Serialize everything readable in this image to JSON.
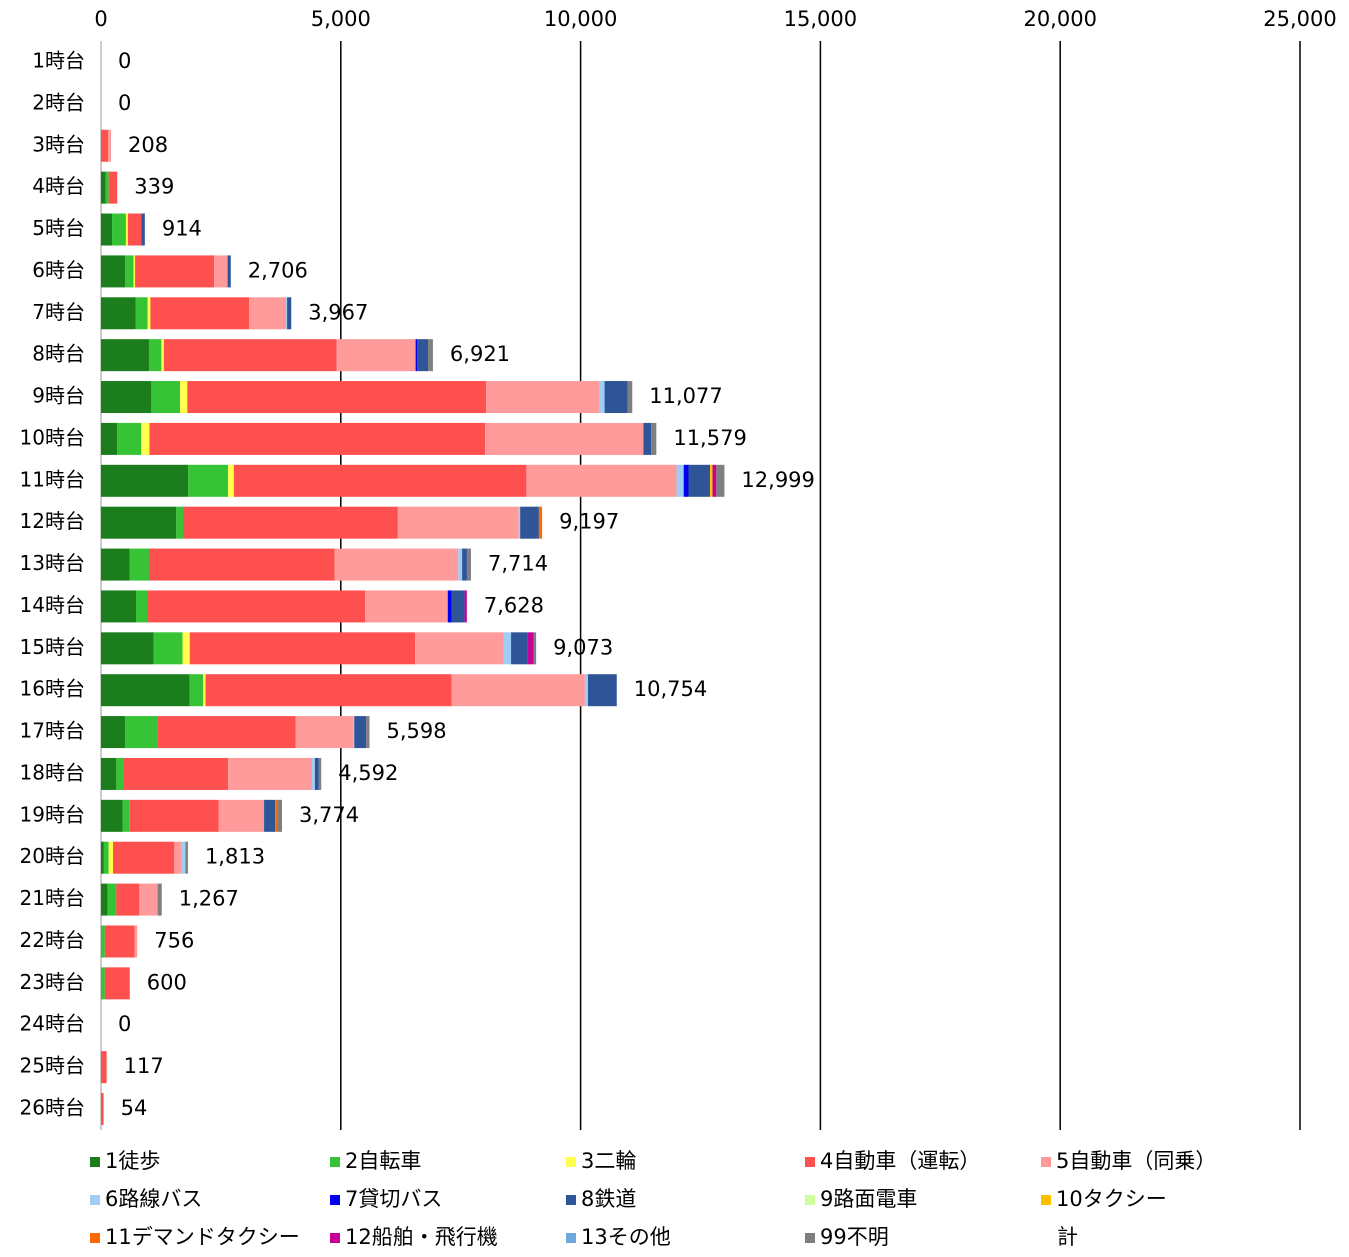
{
  "chart_data": {
    "type": "bar",
    "orientation": "horizontal",
    "stacked": true,
    "grid": true,
    "categories": [
      "1時台",
      "2時台",
      "3時台",
      "4時台",
      "5時台",
      "6時台",
      "7時台",
      "8時台",
      "9時台",
      "10時台",
      "11時台",
      "12時台",
      "13時台",
      "14時台",
      "15時台",
      "16時台",
      "17時台",
      "18時台",
      "19時台",
      "20時台",
      "21時台",
      "22時台",
      "23時台",
      "24時台",
      "25時台",
      "26時台"
    ],
    "xlim": [
      0,
      25000
    ],
    "xticks": [
      0,
      {
        "value": 5000,
        "label": "5,000"
      },
      {
        "value": 10000,
        "label": "10,000"
      },
      {
        "value": 15000,
        "label": "15,000"
      },
      {
        "value": 20000,
        "label": "20,000"
      },
      {
        "value": 25000,
        "label": "25,000"
      }
    ],
    "series": [
      {
        "name": "1徒歩",
        "color": "#1b7d1b",
        "values": [
          0,
          0,
          0,
          100,
          230,
          500,
          720,
          1000,
          1050,
          340,
          1820,
          1570,
          600,
          730,
          1100,
          1850,
          500,
          320,
          450,
          60,
          140,
          0,
          0,
          0,
          0,
          0
        ]
      },
      {
        "name": "2自転車",
        "color": "#36c436",
        "values": [
          0,
          0,
          0,
          60,
          290,
          180,
          250,
          260,
          600,
          500,
          830,
          150,
          400,
          230,
          600,
          280,
          680,
          150,
          150,
          100,
          180,
          80,
          80,
          0,
          0,
          0
        ]
      },
      {
        "name": "3二輪",
        "color": "#ffff4d",
        "values": [
          0,
          0,
          0,
          0,
          40,
          30,
          60,
          50,
          150,
          170,
          120,
          0,
          0,
          0,
          150,
          50,
          0,
          0,
          0,
          90,
          0,
          0,
          0,
          0,
          0,
          0
        ]
      },
      {
        "name": "4自動車（運転）",
        "color": "#ff5050",
        "values": [
          0,
          0,
          150,
          179,
          280,
          1650,
          2060,
          3600,
          6230,
          7000,
          6100,
          4470,
          3870,
          4550,
          4700,
          5130,
          2880,
          2180,
          1850,
          1280,
          480,
          620,
          520,
          0,
          117,
          54
        ]
      },
      {
        "name": "5自動車（同乗）",
        "color": "#ff9b9b",
        "values": [
          0,
          0,
          58,
          0,
          0,
          280,
          770,
          1650,
          2370,
          3300,
          3130,
          2520,
          2580,
          1720,
          1850,
          2780,
          1200,
          1750,
          950,
          150,
          380,
          56,
          0,
          0,
          0,
          0
        ]
      },
      {
        "name": "6路線バス",
        "color": "#9fcdf5",
        "values": [
          0,
          0,
          0,
          0,
          0,
          0,
          20,
          0,
          100,
          0,
          150,
          30,
          80,
          0,
          150,
          64,
          20,
          60,
          0,
          80,
          0,
          0,
          0,
          0,
          0,
          0
        ]
      },
      {
        "name": "7貸切バス",
        "color": "#0000f0",
        "values": [
          0,
          0,
          0,
          0,
          0,
          0,
          0,
          30,
          0,
          0,
          100,
          0,
          0,
          80,
          0,
          0,
          0,
          0,
          0,
          0,
          0,
          0,
          0,
          0,
          0,
          0
        ]
      },
      {
        "name": "8鉄道",
        "color": "#2f5597",
        "values": [
          0,
          0,
          0,
          0,
          74,
          66,
          87,
          230,
          480,
          160,
          450,
          390,
          100,
          270,
          340,
          600,
          250,
          82,
          230,
          0,
          0,
          0,
          0,
          0,
          0,
          0
        ]
      },
      {
        "name": "9路面電車",
        "color": "#ccff99",
        "values": [
          0,
          0,
          0,
          0,
          0,
          0,
          0,
          0,
          0,
          0,
          0,
          0,
          0,
          0,
          0,
          0,
          0,
          0,
          0,
          0,
          0,
          0,
          0,
          0,
          0,
          0
        ]
      },
      {
        "name": "10タクシー",
        "color": "#ffc000",
        "values": [
          0,
          0,
          0,
          0,
          0,
          0,
          0,
          0,
          0,
          0,
          50,
          0,
          0,
          0,
          0,
          0,
          0,
          0,
          0,
          0,
          0,
          0,
          0,
          0,
          0,
          0
        ]
      },
      {
        "name": "11デマンドタクシー",
        "color": "#ff6a00",
        "values": [
          0,
          0,
          0,
          0,
          0,
          0,
          0,
          0,
          0,
          0,
          0,
          67,
          0,
          0,
          0,
          0,
          0,
          0,
          50,
          0,
          0,
          0,
          0,
          0,
          0,
          0
        ]
      },
      {
        "name": "12船舶・飛行機",
        "color": "#c8009a",
        "values": [
          0,
          0,
          0,
          0,
          0,
          0,
          0,
          0,
          0,
          0,
          80,
          0,
          0,
          48,
          130,
          0,
          0,
          0,
          0,
          0,
          0,
          0,
          0,
          0,
          0,
          0
        ]
      },
      {
        "name": "13その他",
        "color": "#6fa8dc",
        "values": [
          0,
          0,
          0,
          0,
          0,
          0,
          0,
          0,
          0,
          0,
          0,
          0,
          0,
          0,
          0,
          0,
          0,
          0,
          0,
          0,
          0,
          0,
          0,
          0,
          0,
          0
        ]
      },
      {
        "name": "99不明",
        "color": "#7f7f7f",
        "values": [
          0,
          0,
          0,
          0,
          0,
          0,
          0,
          101,
          97,
          109,
          169,
          0,
          84,
          0,
          53,
          0,
          68,
          50,
          94,
          53,
          87,
          0,
          0,
          0,
          0,
          0
        ]
      },
      {
        "name": "計",
        "values": [
          0,
          0,
          208,
          339,
          914,
          2706,
          3967,
          6921,
          11077,
          11579,
          12999,
          9197,
          7714,
          7628,
          9073,
          10754,
          5598,
          4592,
          3774,
          1813,
          1267,
          756,
          600,
          0,
          117,
          54
        ],
        "value_labels": [
          "0",
          "0",
          "208",
          "339",
          "914",
          "2,706",
          "3,967",
          "6,921",
          "11,077",
          "11,579",
          "12,999",
          "9,197",
          "7,714",
          "7,628",
          "9,073",
          "10,754",
          "5,598",
          "4,592",
          "3,774",
          "1,813",
          "1,267",
          "756",
          "600",
          "0",
          "117",
          "54"
        ]
      }
    ]
  }
}
